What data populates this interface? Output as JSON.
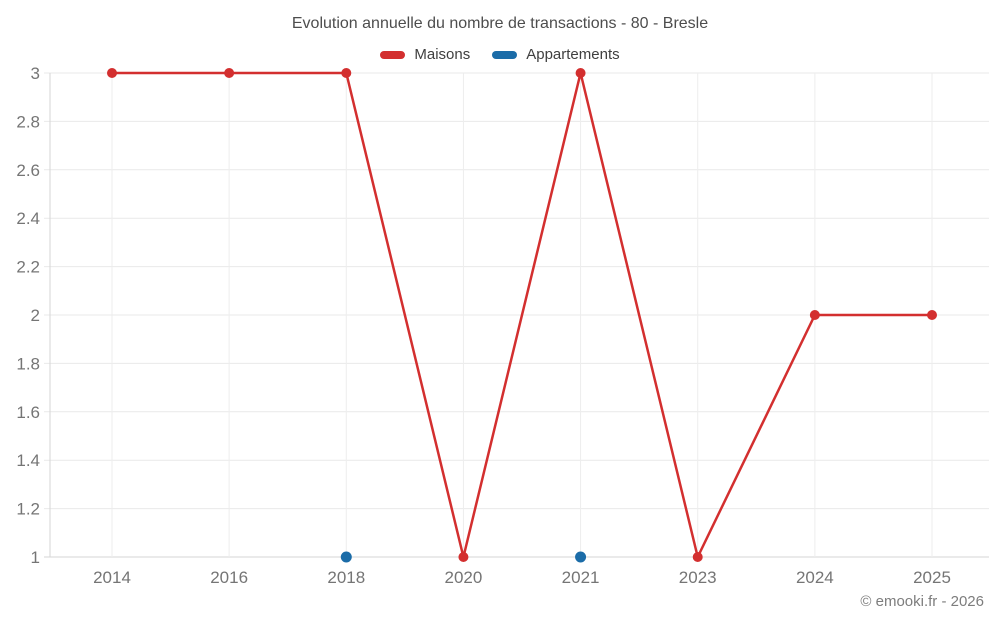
{
  "title": "Evolution annuelle du nombre de transactions - 80 - Bresle",
  "legend": {
    "items": [
      {
        "label": "Maisons",
        "color": "#d32f2f"
      },
      {
        "label": "Appartements",
        "color": "#1b6ca8"
      }
    ]
  },
  "footer": {
    "copyright": "© emooki.fr - 2026"
  },
  "chart_data": {
    "type": "line",
    "title": "Evolution annuelle du nombre de transactions - 80 - Bresle",
    "categories": [
      "2014",
      "2016",
      "2018",
      "2020",
      "2021",
      "2023",
      "2024",
      "2025"
    ],
    "series": [
      {
        "name": "Maisons",
        "color": "#d32f2f",
        "line": true,
        "values": [
          3,
          3,
          3,
          1,
          3,
          1,
          2,
          2
        ]
      },
      {
        "name": "Appartements",
        "color": "#1b6ca8",
        "line": false,
        "values": [
          null,
          null,
          1,
          null,
          1,
          null,
          null,
          null
        ]
      }
    ],
    "xlabel": "",
    "ylabel": "",
    "ylim": [
      1,
      3
    ],
    "ytick_step": 0.2,
    "ytick_labels": [
      "1",
      "1.2",
      "1.4",
      "1.6",
      "1.8",
      "2",
      "2.2",
      "2.4",
      "2.6",
      "2.8",
      "3"
    ],
    "grid": true,
    "legend_position": "top",
    "colors": {
      "tick_text": "#757575",
      "grid_h": "#e9e9e9",
      "grid_v": "#ededed",
      "axis": "#d6d6d6"
    }
  }
}
